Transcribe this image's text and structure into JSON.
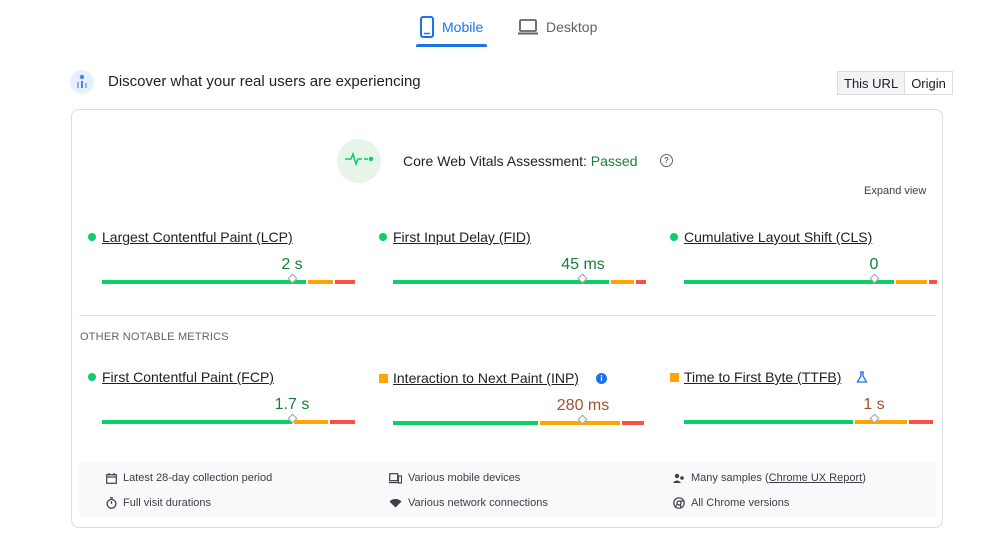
{
  "tabs": {
    "mobile": "Mobile",
    "desktop": "Desktop"
  },
  "header": {
    "title": "Discover what your real users are experiencing",
    "this_url": "This URL",
    "origin": "Origin"
  },
  "assessment": {
    "label": "Core Web Vitals Assessment:",
    "status": "Passed",
    "expand": "Expand view"
  },
  "core_metrics": [
    {
      "name": "Largest Contentful Paint (LCP)",
      "value": "2 s"
    },
    {
      "name": "First Input Delay (FID)",
      "value": "45 ms"
    },
    {
      "name": "Cumulative Layout Shift (CLS)",
      "value": "0"
    }
  ],
  "other_label": "OTHER NOTABLE METRICS",
  "other_metrics": [
    {
      "name": "First Contentful Paint (FCP)",
      "value": "1.7 s"
    },
    {
      "name": "Interaction to Next Paint (INP)",
      "value": "280 ms"
    },
    {
      "name": "Time to First Byte (TTFB)",
      "value": "1 s"
    }
  ],
  "footer": {
    "collection": "Latest 28-day collection period",
    "devices": "Various mobile devices",
    "samples_prefix": "Many samples (",
    "samples_link": "Chrome UX Report",
    "samples_suffix": ")",
    "durations": "Full visit durations",
    "network": "Various network connections",
    "chrome": "All Chrome versions"
  },
  "colors": {
    "accent": "#1a73e8",
    "good": "#0cce6b",
    "needs_improvement": "#ffa400",
    "poor": "#ff4e42",
    "good_text": "#188038",
    "ni_text": "#c5221f"
  }
}
